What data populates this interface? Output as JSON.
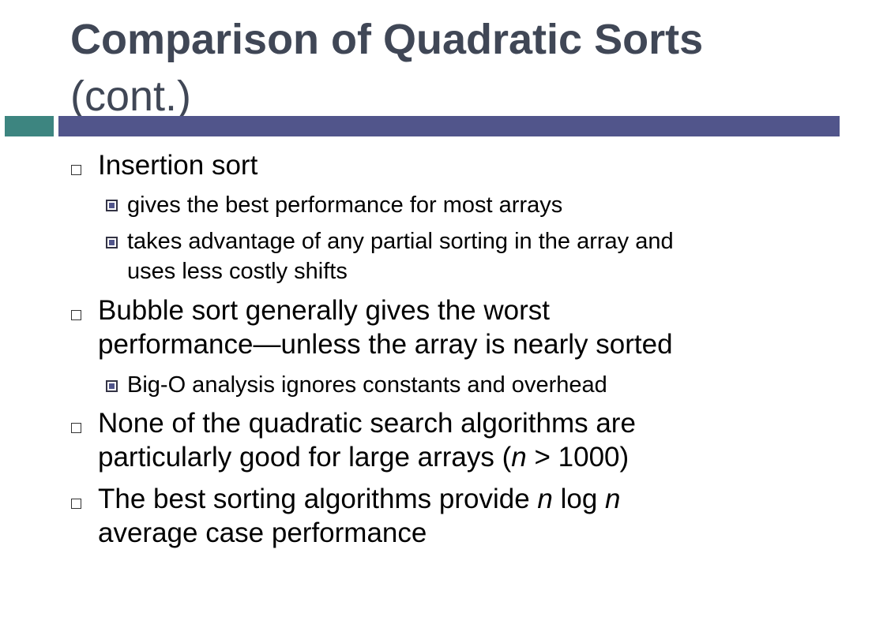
{
  "slide": {
    "title": "Comparison of Quadratic Sorts",
    "subtitle": "(cont.)",
    "colors": {
      "title": "#404756",
      "bar_accent": "#3d8580",
      "bar_main": "#51558b"
    },
    "bullets": [
      {
        "text": "Insertion sort",
        "subs": [
          {
            "text": "gives the best performance for most arrays"
          },
          {
            "line1": "takes advantage of any partial sorting in the array and",
            "line2": "uses less costly shifts"
          }
        ]
      },
      {
        "line1": "Bubble sort generally gives the worst",
        "line2": "performance—unless the array is nearly sorted",
        "subs": [
          {
            "text": "Big-O analysis ignores constants and overhead"
          }
        ]
      },
      {
        "line1": "None of the quadratic search algorithms are",
        "line2_a": "particularly good for large arrays (",
        "line2_var": "n",
        "line2_b": " > 1000)"
      },
      {
        "line1_a": "The best sorting algorithms provide ",
        "line1_var1": "n",
        "line1_mid": " log ",
        "line1_var2": "n",
        "line2": "average case performance"
      }
    ]
  }
}
